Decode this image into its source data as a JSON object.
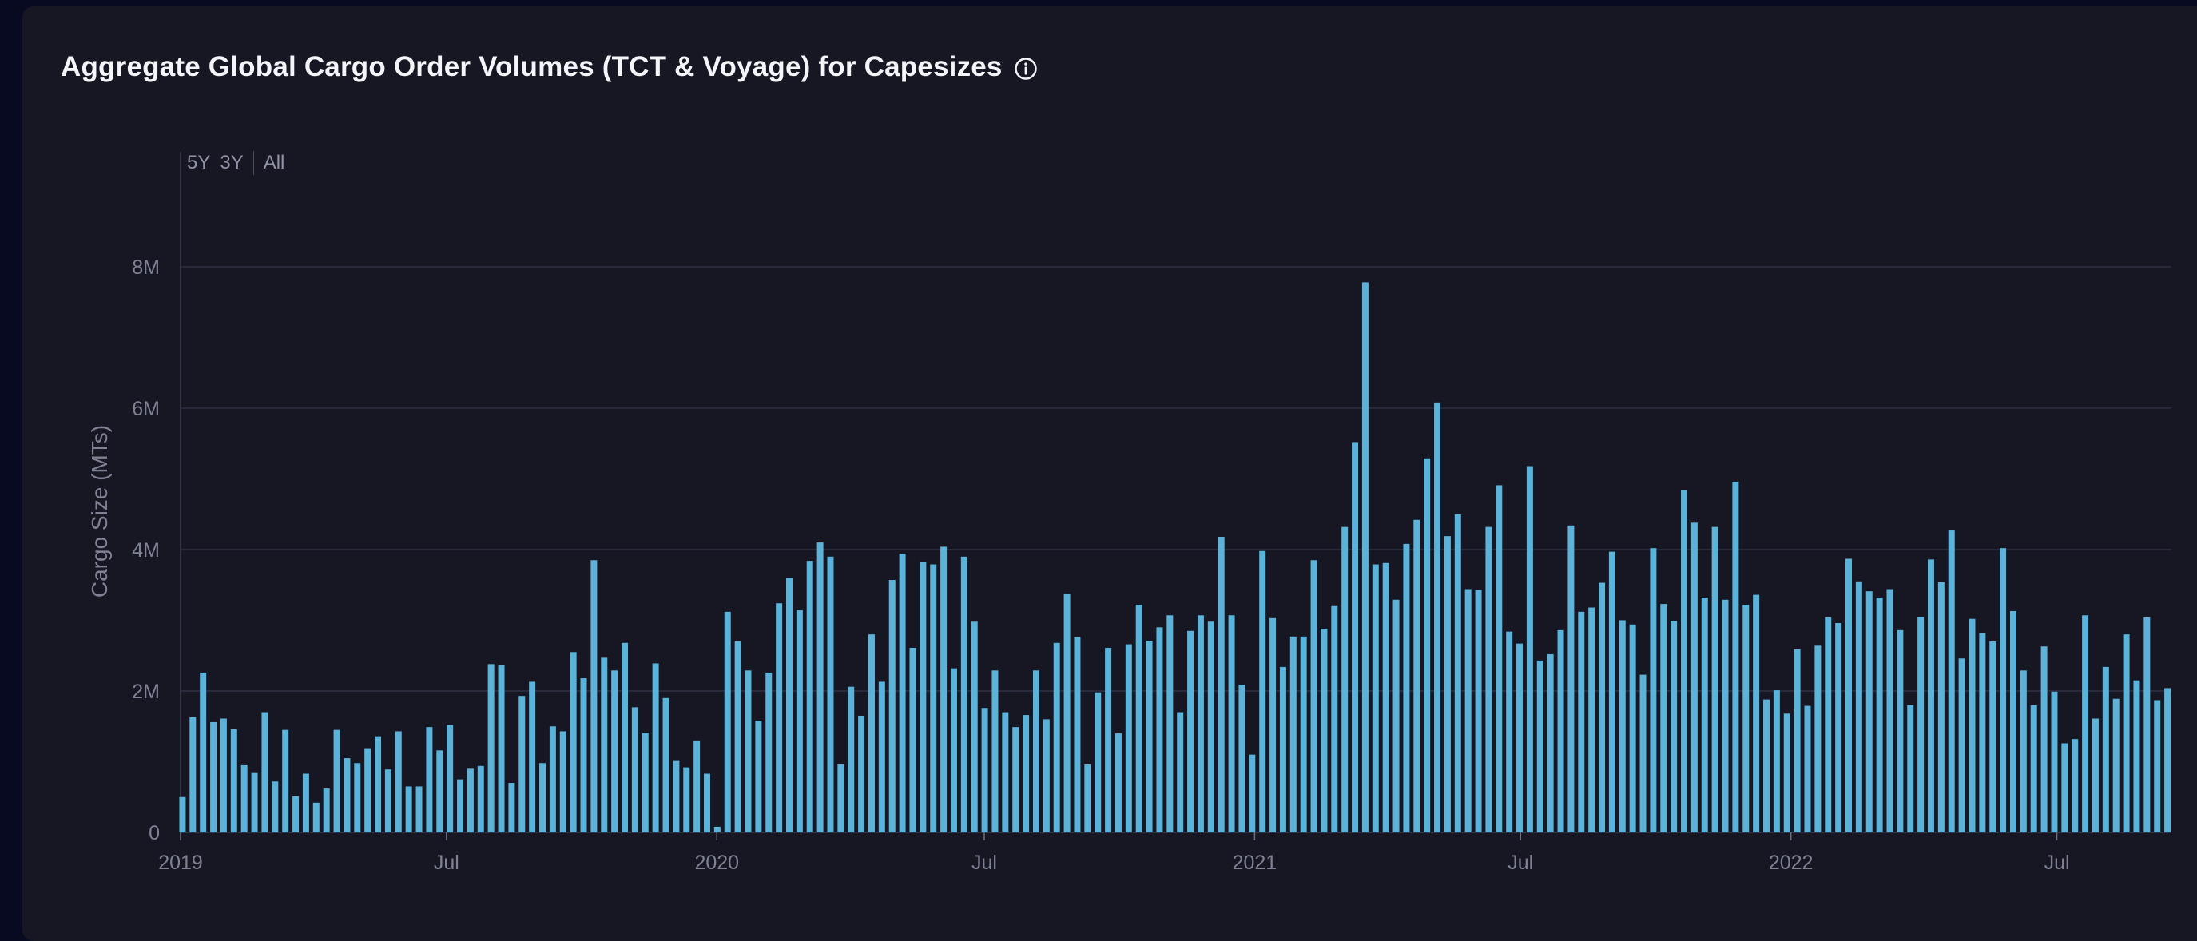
{
  "header": {
    "title": "Aggregate Global Cargo Order Volumes (TCT & Voyage) for Capesizes"
  },
  "range_controls": {
    "five_year": "5Y",
    "three_year": "3Y",
    "all": "All"
  },
  "colors": {
    "bar": "#5bb3d9",
    "background": "#171724",
    "grid": "#34374a",
    "axis_text": "#7f8294"
  },
  "chart_data": {
    "type": "bar",
    "ylabel": "Cargo Size (MTs)",
    "xlabel": "",
    "x_start": "2019-01-01",
    "interval": "weekly",
    "xlim": [
      "2019-01-01",
      "2022-09-17"
    ],
    "ylim": [
      0,
      9400000
    ],
    "y_ticks": [
      {
        "value": 0,
        "label": "0"
      },
      {
        "value": 2000000,
        "label": "2M"
      },
      {
        "value": 4000000,
        "label": "4M"
      },
      {
        "value": 6000000,
        "label": "6M"
      },
      {
        "value": 8000000,
        "label": "8M"
      }
    ],
    "x_ticks": [
      {
        "date": "2019-01-01",
        "label": "2019"
      },
      {
        "date": "2019-07-01",
        "label": "Jul"
      },
      {
        "date": "2020-01-01",
        "label": "2020"
      },
      {
        "date": "2020-07-01",
        "label": "Jul"
      },
      {
        "date": "2021-01-01",
        "label": "2021"
      },
      {
        "date": "2021-07-01",
        "label": "Jul"
      },
      {
        "date": "2022-01-01",
        "label": "2022"
      },
      {
        "date": "2022-07-01",
        "label": "Jul"
      }
    ],
    "grid": true,
    "legend": "none",
    "values": [
      500000,
      1630000,
      2260000,
      1560000,
      1610000,
      1460000,
      950000,
      840000,
      1700000,
      720000,
      1450000,
      510000,
      830000,
      420000,
      620000,
      1450000,
      1050000,
      980000,
      1180000,
      1360000,
      890000,
      1430000,
      650000,
      650000,
      1490000,
      1160000,
      1520000,
      750000,
      900000,
      940000,
      2380000,
      2370000,
      700000,
      1930000,
      2130000,
      980000,
      1500000,
      1430000,
      2550000,
      2180000,
      3850000,
      2470000,
      2290000,
      2680000,
      1770000,
      1410000,
      2390000,
      1900000,
      1010000,
      920000,
      1290000,
      830000,
      80000,
      3120000,
      2700000,
      2290000,
      1580000,
      2260000,
      3240000,
      3600000,
      3140000,
      3840000,
      4100000,
      3900000,
      960000,
      2060000,
      1650000,
      2800000,
      2130000,
      3570000,
      3940000,
      2610000,
      3820000,
      3790000,
      4040000,
      2320000,
      3900000,
      2980000,
      1760000,
      2290000,
      1700000,
      1490000,
      1660000,
      2290000,
      1600000,
      2680000,
      3370000,
      2760000,
      960000,
      1980000,
      2610000,
      1400000,
      2660000,
      3220000,
      2710000,
      2900000,
      3070000,
      1700000,
      2850000,
      3070000,
      2980000,
      4180000,
      3070000,
      2090000,
      1100000,
      3980000,
      3030000,
      2340000,
      2770000,
      2770000,
      3850000,
      2880000,
      3200000,
      4320000,
      5520000,
      7780000,
      3790000,
      3810000,
      3290000,
      4080000,
      4420000,
      5290000,
      6080000,
      4190000,
      4500000,
      3440000,
      3430000,
      4320000,
      4910000,
      2840000,
      2670000,
      5180000,
      2430000,
      2520000,
      2860000,
      4340000,
      3120000,
      3180000,
      3530000,
      3970000,
      3000000,
      2940000,
      2230000,
      4020000,
      3230000,
      2990000,
      4840000,
      4380000,
      3320000,
      4320000,
      3290000,
      4960000,
      3220000,
      3360000,
      1880000,
      2010000,
      1680000,
      2590000,
      1790000,
      2640000,
      3040000,
      2960000,
      3870000,
      3550000,
      3410000,
      3320000,
      3440000,
      2860000,
      1800000,
      3050000,
      3860000,
      3540000,
      4270000,
      2460000,
      3020000,
      2820000,
      2700000,
      4020000,
      3130000,
      2290000,
      1800000,
      2630000,
      1990000,
      1260000,
      1320000,
      3070000,
      1610000,
      2340000,
      1890000,
      2800000,
      2150000,
      3040000,
      1870000,
      2040000
    ]
  }
}
